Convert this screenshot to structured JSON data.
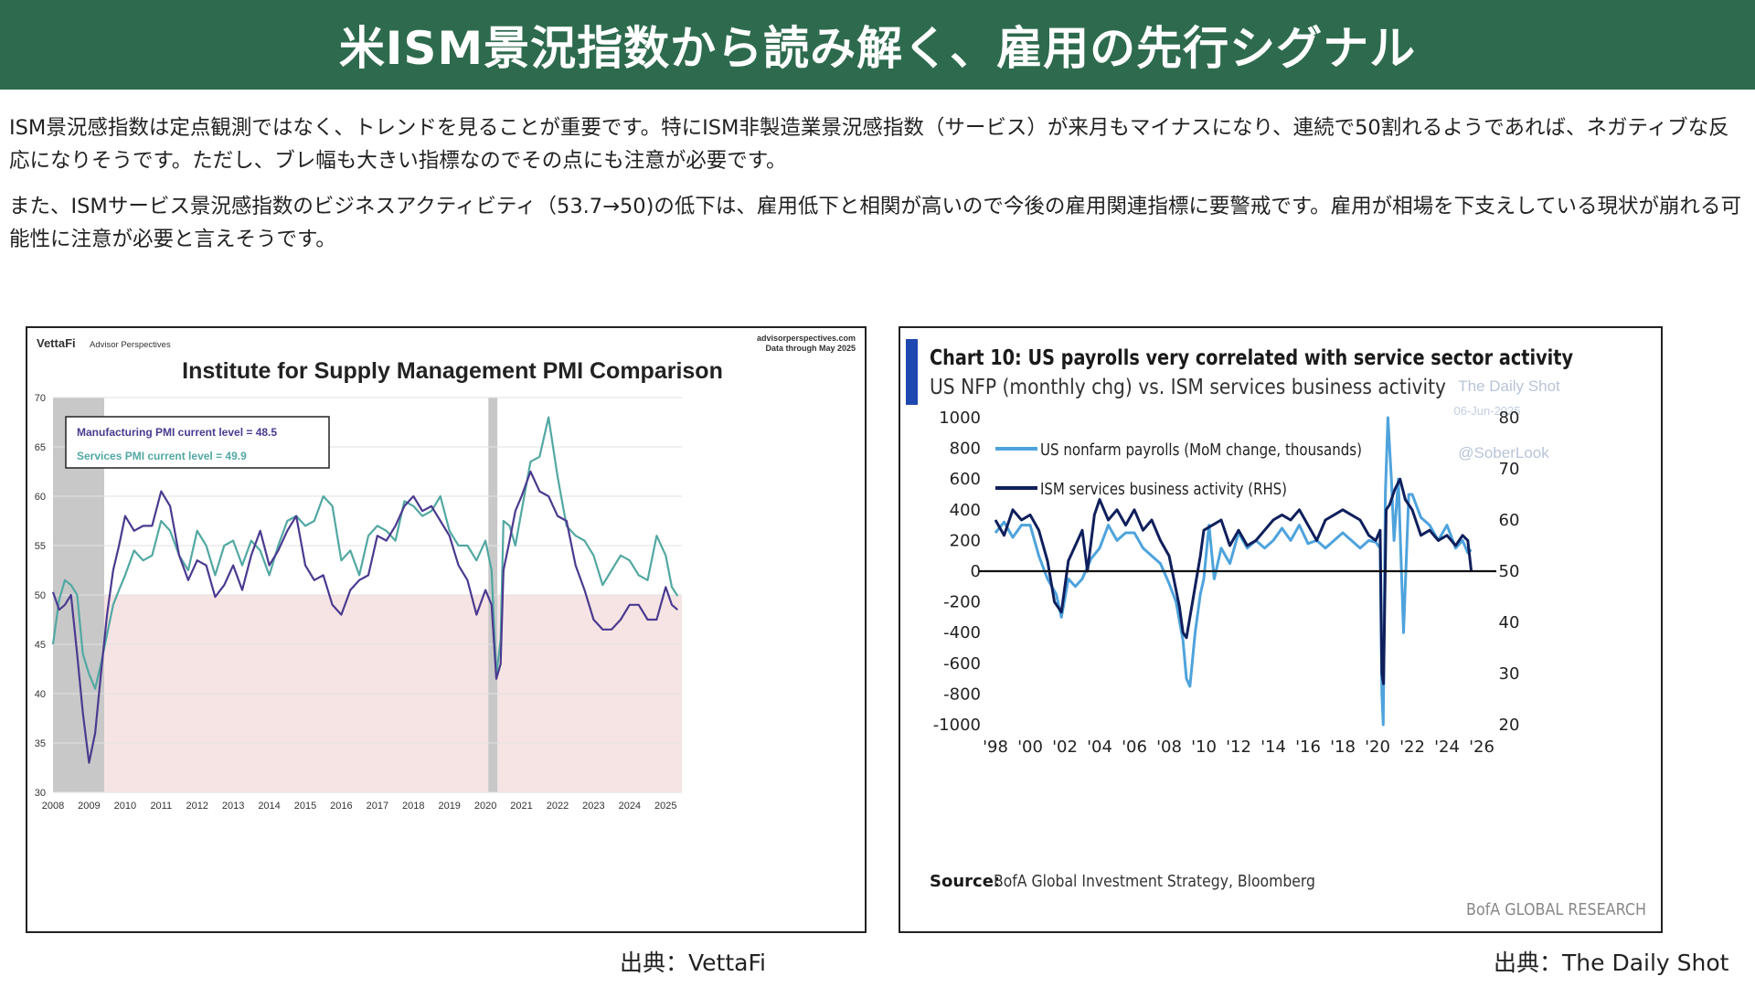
{
  "banner": {
    "title": "米ISM景況指数から読み解く、雇用の先行シグナル"
  },
  "body": {
    "paragraph1": "ISM景況感指数は定点観測ではなく、トレンドを見ることが重要です。特にISM非製造業景況感指数（サービス）が来月もマイナスになり、連続で50割れるようであれば、ネガティブな反応になりそうです。ただし、ブレ幅も大きい指標なのでその点にも注意が必要です。",
    "paragraph2": "また、ISMサービス景況感指数のビジネスアクティビティ（53.7→50)の低下は、雇用低下と相関が高いので今後の雇用関連指標に要警戒です。雇用が相場を下支えしている現状が崩れる可能性に注意が必要と言えそうです。"
  },
  "credits": {
    "left": "出典：VettaFi",
    "right": "出典：The Daily Shot"
  },
  "colors": {
    "banner": "#2e6b4e",
    "manufacturing": "#4b3a8f",
    "services": "#52a8a2",
    "contraction_shade": "#f6e4e4",
    "recession_shade": "#c8c8c8",
    "payrolls": "#4ea3dc",
    "ism_services_activity": "#0f1f5c",
    "bofa_bar": "#1e48b0"
  },
  "chart_data": [
    {
      "type": "line",
      "brand": "VettaFi",
      "brand_sub": "Advisor Perspectives",
      "site": "advisorperspectives.com",
      "note": "Data through May 2025",
      "title": "Institute for Supply Management PMI Comparison",
      "ylim": [
        30,
        70
      ],
      "yticks": [
        30,
        35,
        40,
        45,
        50,
        55,
        60,
        65,
        70
      ],
      "xlim": [
        2008.0,
        2025.45
      ],
      "xticks": [
        2008,
        2009,
        2010,
        2011,
        2012,
        2013,
        2014,
        2015,
        2016,
        2017,
        2018,
        2019,
        2020,
        2021,
        2022,
        2023,
        2024,
        2025
      ],
      "threshold": 50,
      "recessions": [
        [
          2008.0,
          2009.42
        ],
        [
          2020.08,
          2020.33
        ]
      ],
      "legend": [
        "Manufacturing PMI current level = 48.5",
        "Services PMI current level = 49.9"
      ],
      "series": [
        {
          "name": "Manufacturing PMI",
          "x": [
            2008.0,
            2008.17,
            2008.33,
            2008.5,
            2008.67,
            2008.83,
            2009.0,
            2009.17,
            2009.33,
            2009.5,
            2009.67,
            2009.83,
            2010.0,
            2010.25,
            2010.5,
            2010.75,
            2011.0,
            2011.25,
            2011.5,
            2011.75,
            2012.0,
            2012.25,
            2012.5,
            2012.75,
            2013.0,
            2013.25,
            2013.5,
            2013.75,
            2014.0,
            2014.25,
            2014.5,
            2014.75,
            2015.0,
            2015.25,
            2015.5,
            2015.75,
            2016.0,
            2016.25,
            2016.5,
            2016.75,
            2017.0,
            2017.25,
            2017.5,
            2017.75,
            2018.0,
            2018.25,
            2018.5,
            2018.75,
            2019.0,
            2019.25,
            2019.5,
            2019.75,
            2020.0,
            2020.17,
            2020.3,
            2020.42,
            2020.5,
            2020.67,
            2020.83,
            2021.0,
            2021.25,
            2021.5,
            2021.75,
            2022.0,
            2022.25,
            2022.5,
            2022.75,
            2023.0,
            2023.25,
            2023.5,
            2023.75,
            2024.0,
            2024.25,
            2024.5,
            2024.75,
            2025.0,
            2025.17,
            2025.33
          ],
          "y": [
            50.3,
            48.5,
            49.0,
            50.0,
            44.0,
            38.0,
            33.0,
            36.0,
            42.0,
            48.0,
            52.5,
            55.0,
            58.0,
            56.5,
            57.0,
            57.0,
            60.5,
            59.0,
            54.0,
            51.5,
            53.5,
            53.0,
            49.8,
            51.0,
            53.0,
            50.5,
            54.0,
            56.5,
            53.0,
            54.5,
            56.5,
            58.0,
            53.0,
            51.5,
            52.0,
            49.0,
            48.0,
            50.5,
            51.5,
            52.0,
            56.0,
            55.5,
            57.0,
            59.0,
            60.0,
            58.5,
            59.0,
            57.5,
            56.0,
            53.0,
            51.5,
            48.0,
            50.5,
            49.0,
            41.5,
            43.0,
            52.5,
            55.5,
            58.5,
            60.0,
            62.5,
            60.5,
            60.0,
            58.0,
            57.5,
            53.0,
            50.5,
            47.5,
            46.5,
            46.5,
            47.5,
            49.0,
            49.0,
            47.5,
            47.5,
            50.8,
            49.0,
            48.5
          ]
        },
        {
          "name": "Services PMI",
          "x": [
            2008.0,
            2008.17,
            2008.33,
            2008.5,
            2008.67,
            2008.83,
            2009.0,
            2009.17,
            2009.33,
            2009.5,
            2009.67,
            2009.83,
            2010.0,
            2010.25,
            2010.5,
            2010.75,
            2011.0,
            2011.25,
            2011.5,
            2011.75,
            2012.0,
            2012.25,
            2012.5,
            2012.75,
            2013.0,
            2013.25,
            2013.5,
            2013.75,
            2014.0,
            2014.25,
            2014.5,
            2014.75,
            2015.0,
            2015.25,
            2015.5,
            2015.75,
            2016.0,
            2016.25,
            2016.5,
            2016.75,
            2017.0,
            2017.25,
            2017.5,
            2017.75,
            2018.0,
            2018.25,
            2018.5,
            2018.75,
            2019.0,
            2019.25,
            2019.5,
            2019.75,
            2020.0,
            2020.17,
            2020.3,
            2020.42,
            2020.5,
            2020.67,
            2020.83,
            2021.0,
            2021.25,
            2021.5,
            2021.75,
            2022.0,
            2022.25,
            2022.5,
            2022.75,
            2023.0,
            2023.25,
            2023.5,
            2023.75,
            2024.0,
            2024.25,
            2024.5,
            2024.75,
            2025.0,
            2025.17,
            2025.33
          ],
          "y": [
            45.0,
            49.5,
            51.5,
            51.0,
            50.0,
            44.0,
            42.0,
            40.5,
            43.0,
            46.0,
            49.0,
            50.5,
            52.0,
            54.5,
            53.5,
            54.0,
            57.5,
            56.5,
            54.0,
            52.5,
            56.5,
            55.0,
            52.0,
            55.0,
            55.5,
            53.0,
            55.5,
            54.5,
            52.0,
            55.0,
            57.5,
            58.0,
            57.0,
            57.5,
            60.0,
            59.0,
            53.5,
            54.5,
            52.0,
            56.0,
            57.0,
            56.5,
            55.5,
            59.5,
            59.0,
            58.0,
            58.5,
            60.0,
            56.5,
            55.0,
            55.0,
            53.5,
            55.5,
            52.5,
            41.8,
            45.5,
            57.5,
            57.0,
            55.0,
            58.5,
            63.5,
            64.0,
            68.0,
            62.0,
            57.0,
            56.0,
            55.5,
            54.0,
            51.0,
            52.5,
            54.0,
            53.5,
            52.0,
            51.5,
            56.0,
            54.0,
            50.8,
            49.9
          ]
        }
      ]
    },
    {
      "type": "line",
      "title": "Chart 10: US payrolls very correlated with service sector activity",
      "subtitle": "US NFP (monthly chg) vs. ISM services business activity",
      "watermark": [
        "The Daily Shot",
        "06-Jun-2025",
        "@SoberLook"
      ],
      "source_label": "Source:",
      "source": "BofA Global Investment Strategy, Bloomberg",
      "footer": "BofA GLOBAL RESEARCH",
      "ylim_left": [
        -1000,
        1000
      ],
      "yticks_left": [
        1000,
        800,
        600,
        400,
        200,
        0,
        -200,
        -400,
        -600,
        -800,
        -1000
      ],
      "ylim_right": [
        20,
        80
      ],
      "yticks_right": [
        80,
        70,
        60,
        50,
        40,
        30,
        20
      ],
      "xlim": [
        1998,
        2026
      ],
      "xticks": [
        "'98",
        "'00",
        "'02",
        "'04",
        "'06",
        "'08",
        "'10",
        "'12",
        "'14",
        "'16",
        "'18",
        "'20",
        "'22",
        "'24",
        "'26"
      ],
      "series": [
        {
          "name": "US nonfarm payrolls (MoM change, thousands)",
          "axis": "left",
          "x": [
            1998.0,
            1998.5,
            1999.0,
            1999.5,
            2000.0,
            2000.5,
            2001.0,
            2001.5,
            2001.8,
            2002.2,
            2002.6,
            2003.0,
            2003.5,
            2004.0,
            2004.5,
            2005.0,
            2005.5,
            2006.0,
            2006.5,
            2007.0,
            2007.5,
            2008.0,
            2008.4,
            2008.8,
            2009.0,
            2009.2,
            2009.5,
            2009.8,
            2010.0,
            2010.3,
            2010.6,
            2011.0,
            2011.5,
            2012.0,
            2012.5,
            2013.0,
            2013.5,
            2014.0,
            2014.5,
            2015.0,
            2015.5,
            2016.0,
            2016.5,
            2017.0,
            2017.5,
            2018.0,
            2018.5,
            2019.0,
            2019.5,
            2019.9,
            2020.15,
            2020.25,
            2020.33,
            2020.45,
            2020.6,
            2020.8,
            2020.95,
            2021.2,
            2021.5,
            2021.8,
            2022.0,
            2022.5,
            2023.0,
            2023.5,
            2024.0,
            2024.5,
            2024.9,
            2025.2,
            2025.4
          ],
          "y": [
            250,
            320,
            220,
            300,
            300,
            100,
            -50,
            -150,
            -300,
            -50,
            -100,
            -50,
            80,
            150,
            300,
            200,
            250,
            250,
            150,
            100,
            50,
            -80,
            -200,
            -450,
            -700,
            -750,
            -400,
            -150,
            -50,
            300,
            -50,
            150,
            50,
            250,
            150,
            200,
            150,
            200,
            280,
            200,
            300,
            180,
            200,
            150,
            200,
            250,
            200,
            150,
            200,
            190,
            150,
            -800,
            -1000,
            500,
            1000,
            600,
            200,
            600,
            -400,
            500,
            500,
            350,
            300,
            200,
            300,
            150,
            200,
            120,
            140
          ]
        },
        {
          "name": "ISM services business activity (RHS)",
          "axis": "right",
          "x": [
            1998.0,
            1998.5,
            1999.0,
            1999.5,
            2000.0,
            2000.5,
            2001.0,
            2001.4,
            2001.8,
            2002.2,
            2002.6,
            2003.0,
            2003.3,
            2003.7,
            2004.0,
            2004.5,
            2005.0,
            2005.5,
            2006.0,
            2006.5,
            2007.0,
            2007.5,
            2008.0,
            2008.3,
            2008.6,
            2008.8,
            2009.0,
            2009.4,
            2009.8,
            2010.0,
            2010.5,
            2011.0,
            2011.5,
            2012.0,
            2012.5,
            2013.0,
            2013.5,
            2014.0,
            2014.5,
            2015.0,
            2015.5,
            2016.0,
            2016.5,
            2017.0,
            2017.5,
            2018.0,
            2018.5,
            2019.0,
            2019.5,
            2019.9,
            2020.15,
            2020.25,
            2020.35,
            2020.5,
            2020.7,
            2021.0,
            2021.3,
            2021.6,
            2022.0,
            2022.5,
            2023.0,
            2023.5,
            2024.0,
            2024.5,
            2024.9,
            2025.2,
            2025.4
          ],
          "y": [
            60,
            57,
            62,
            60,
            61,
            58,
            52,
            44,
            42,
            52,
            55,
            58,
            50,
            61,
            64,
            60,
            62,
            59,
            62,
            58,
            60,
            56,
            53,
            48,
            43,
            38,
            37,
            45,
            53,
            58,
            59,
            60,
            55,
            58,
            55,
            56,
            58,
            60,
            61,
            60,
            62,
            59,
            56,
            60,
            61,
            62,
            61,
            60,
            57,
            56,
            58,
            30,
            28,
            62,
            63,
            66,
            68,
            64,
            62,
            57,
            58,
            56,
            57,
            55,
            57,
            56,
            50
          ]
        }
      ]
    }
  ]
}
